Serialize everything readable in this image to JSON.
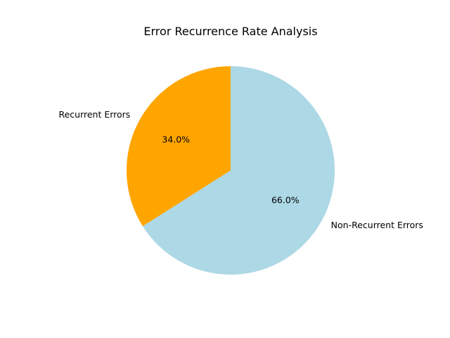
{
  "chart_data": {
    "type": "pie",
    "title": "Error Recurrence Rate Analysis",
    "slices": [
      {
        "label": "Recurrent Errors",
        "value": 34.0,
        "pct_label": "34.0%",
        "color": "#ffa500"
      },
      {
        "label": "Non-Recurrent Errors",
        "value": 66.0,
        "pct_label": "66.0%",
        "color": "#add8e6"
      }
    ],
    "start_angle_deg": 90,
    "direction": "counterclockwise",
    "legend": "none"
  }
}
